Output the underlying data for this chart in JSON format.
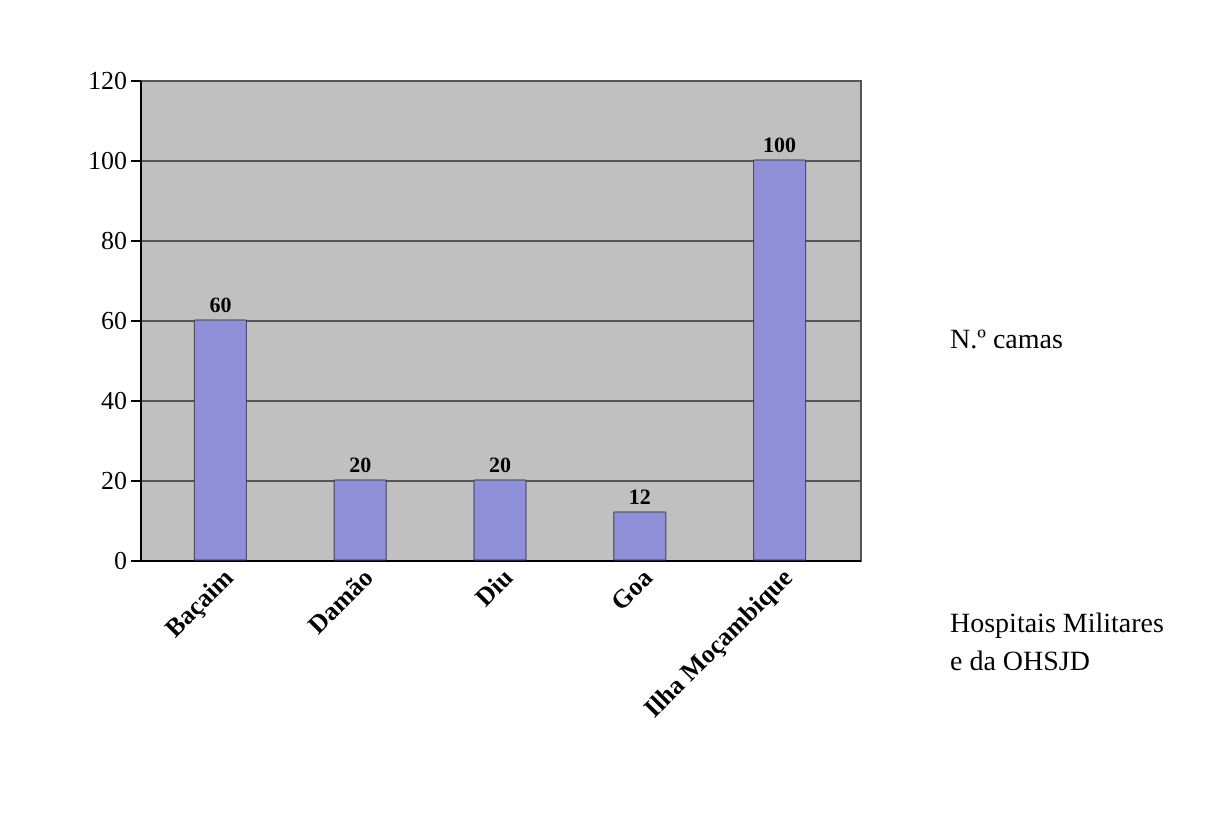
{
  "chart_data": {
    "type": "bar",
    "categories": [
      "Baçaim",
      "Damão",
      "Diu",
      "Goa",
      "Ilha Moçambique"
    ],
    "values": [
      60,
      20,
      20,
      12,
      100
    ],
    "color": "#9090d8",
    "ylabel": "N.º camas",
    "xlabel": "Hospitais Militares\ne da OHSJD",
    "ylim": [
      0,
      120
    ],
    "yticks": [
      0,
      20,
      40,
      60,
      80,
      100,
      120
    ],
    "grid": "y",
    "data_labels": true
  }
}
